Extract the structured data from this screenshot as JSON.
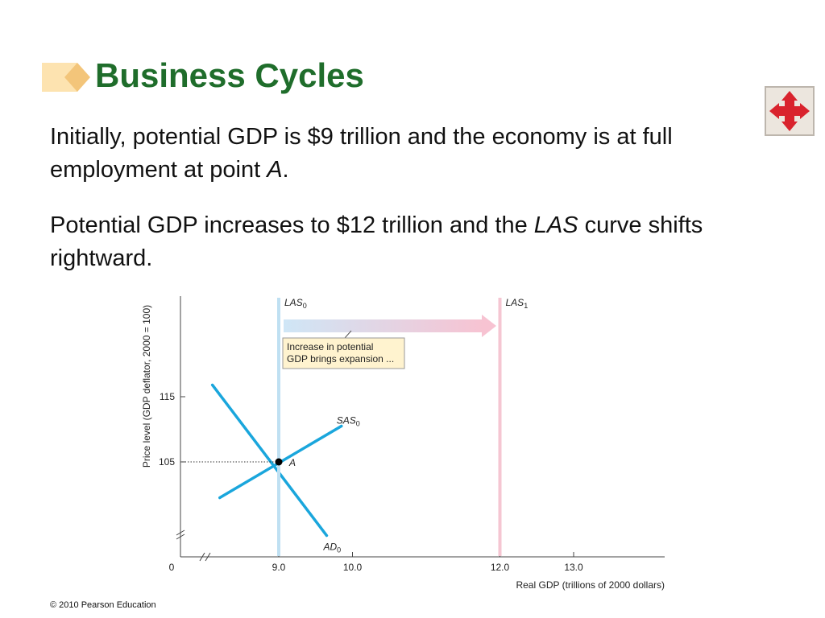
{
  "slide": {
    "title": "Business Cycles",
    "para1": {
      "text_a": "Initially, potential GDP is $9 trillion and the economy is at full employment at point ",
      "italic": "A",
      "text_b": "."
    },
    "para2": {
      "text_a": "Potential GDP increases to $12 trillion and the ",
      "italic": "LAS",
      "text_b": " curve shifts rightward."
    },
    "footer": "© 2010 Pearson Education",
    "nav_icon": "four-way-arrows-icon",
    "colors": {
      "title": "#1f6d2b",
      "curve": "#1aa6dc",
      "las0": "#bfe0f2",
      "las1": "#f5c6d2",
      "nav": "#d9232d"
    }
  },
  "chart_data": {
    "type": "line",
    "xlabel": "Real GDP (trillions of 2000 dollars)",
    "ylabel": "Price level (GDP deflator, 2000 = 100)",
    "x_origin_label": "0",
    "x_ticks": [
      "9.0",
      "10.0",
      "12.0",
      "13.0"
    ],
    "y_ticks": [
      "105",
      "115"
    ],
    "series": [
      {
        "name": "AD0",
        "label": "AD",
        "sub": "0",
        "points": [
          [
            8.1,
            116.8
          ],
          [
            9.65,
            93.7
          ]
        ]
      },
      {
        "name": "SAS0",
        "label": "SAS",
        "sub": "0",
        "points": [
          [
            8.2,
            99.5
          ],
          [
            9.85,
            110.5
          ]
        ]
      },
      {
        "name": "LAS0",
        "label": "LAS",
        "sub": "0",
        "x": 9.0
      },
      {
        "name": "LAS1",
        "label": "LAS",
        "sub": "1",
        "x": 12.0
      }
    ],
    "equilibrium": {
      "label": "A",
      "x": 9.0,
      "y": 105
    },
    "annotation": [
      "Increase in potential",
      "GDP brings expansion ..."
    ]
  }
}
